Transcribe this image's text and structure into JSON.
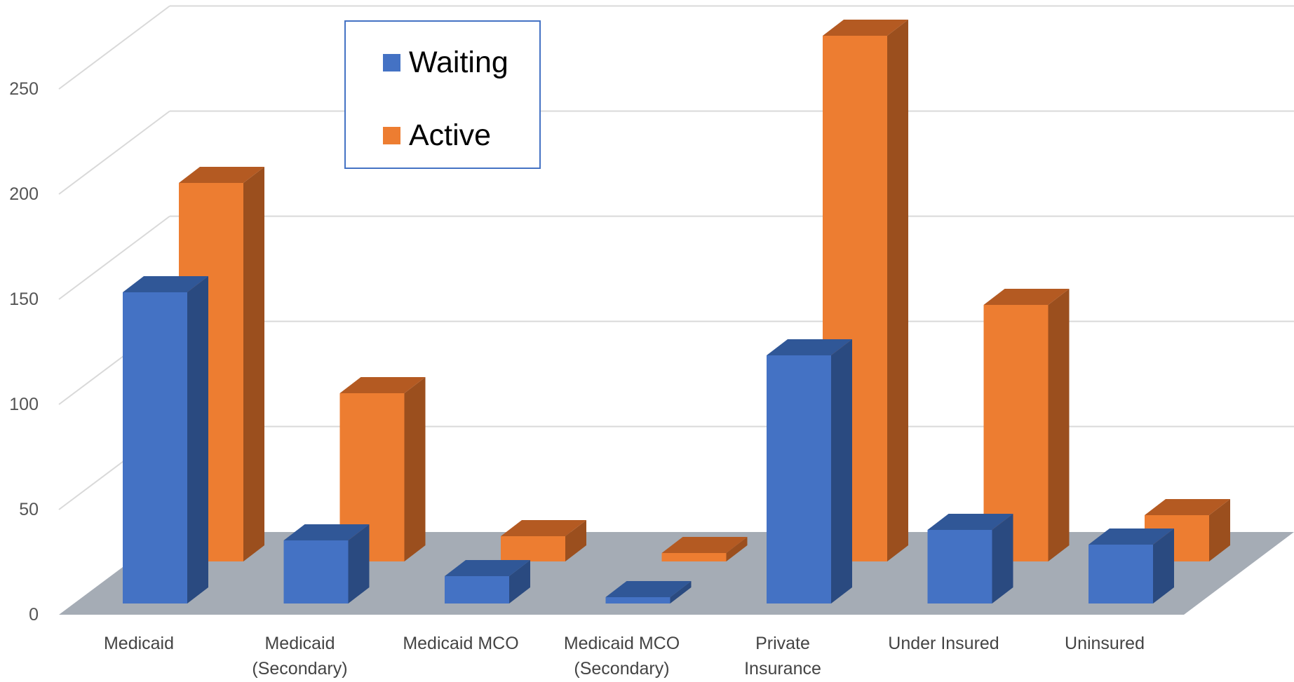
{
  "chart_data": {
    "type": "bar",
    "style": "3d-clustered-column",
    "title": "",
    "xlabel": "",
    "ylabel": "",
    "categories": [
      [
        "Medicaid"
      ],
      [
        "Medicaid",
        "(Secondary)"
      ],
      [
        "Medicaid MCO"
      ],
      [
        "Medicaid MCO",
        "(Secondary)"
      ],
      [
        "Private",
        "Insurance"
      ],
      [
        "Under Insured"
      ],
      [
        "Uninsured"
      ]
    ],
    "series": [
      {
        "name": "Waiting",
        "color": "#4472C4",
        "values": [
          148,
          30,
          13,
          3,
          118,
          35,
          28
        ]
      },
      {
        "name": "Active",
        "color": "#ED7D31",
        "values": [
          180,
          80,
          12,
          4,
          250,
          122,
          22
        ]
      }
    ],
    "ylim": [
      0,
      250
    ],
    "yticks": [
      "0",
      "50",
      "100",
      "150",
      "200",
      "250"
    ],
    "grid": true,
    "legend_position": "top-left"
  }
}
